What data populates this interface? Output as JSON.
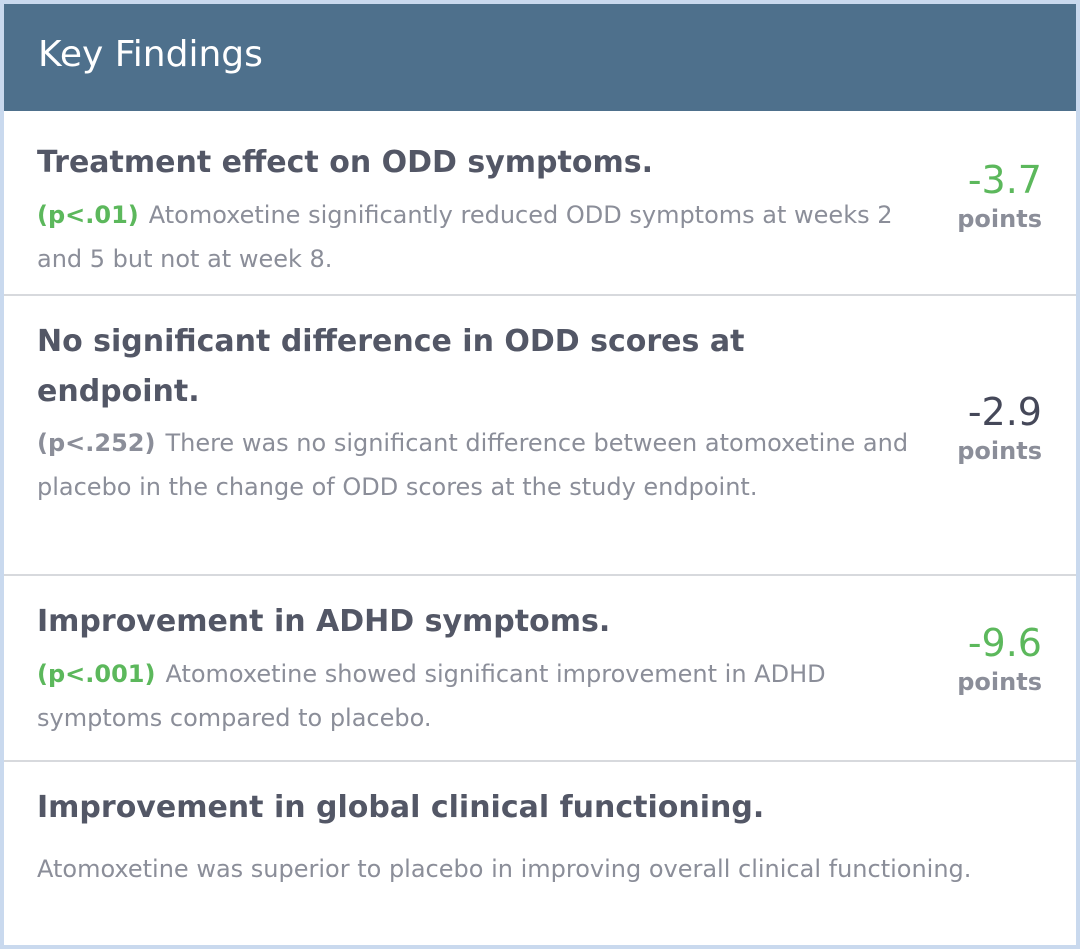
{
  "header": {
    "title": "Key Findings"
  },
  "findings": [
    {
      "title": "Treatment effect on ODD symptoms.",
      "p_value": "(p<.01)",
      "description": "Atomoxetine significantly reduced ODD symptoms at weeks 2 and 5 but not at week 8.",
      "metric_value": "-3.7",
      "metric_unit": "points",
      "significant": true
    },
    {
      "title": "No significant difference in ODD scores at endpoint.",
      "p_value": "(p<.252)",
      "description": "There was no significant difference between atomoxetine and placebo in the change of ODD scores at the study endpoint.",
      "metric_value": "-2.9",
      "metric_unit": "points",
      "significant": false
    },
    {
      "title": "Improvement in ADHD symptoms.",
      "p_value": "(p<.001)",
      "description": "Atomoxetine showed significant improvement in ADHD symptoms compared to placebo.",
      "metric_value": "-9.6",
      "metric_unit": "points",
      "significant": true
    },
    {
      "title": "Improvement in global clinical functioning.",
      "description": "Atomoxetine was superior to placebo in improving overall clinical functioning."
    }
  ],
  "colors": {
    "header_bg": "#4e708c",
    "significant": "#5cb85c",
    "non_significant": "#8b8e99",
    "title_text": "#535766",
    "body_text": "#8b8e99"
  }
}
